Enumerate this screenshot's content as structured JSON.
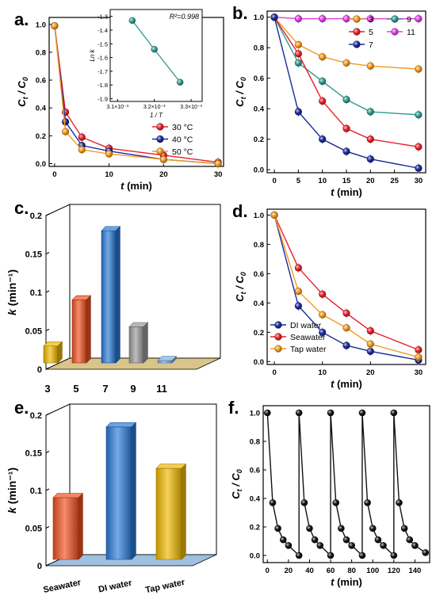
{
  "chart_data": [
    {
      "id": "a",
      "type": "line",
      "panel_label": "a.",
      "xlabel": "t (min)",
      "ylabel": "Ct / C0",
      "xlim": [
        -1,
        31
      ],
      "ylim": [
        -0.02,
        1.05
      ],
      "xticks": [
        "0",
        "10",
        "20",
        "30"
      ],
      "yticks": [
        "0.0",
        "0.2",
        "0.4",
        "0.6",
        "0.8",
        "1.0"
      ],
      "legend_position": "bottom-right",
      "series": [
        {
          "name": "30 °C",
          "color": "#e8202a",
          "x": [
            0,
            2,
            5,
            10,
            20,
            30
          ],
          "y": [
            0.99,
            0.37,
            0.19,
            0.11,
            0.06,
            0.01
          ]
        },
        {
          "name": "40 °C",
          "color": "#1a2a9a",
          "x": [
            0,
            2,
            5,
            10,
            20,
            30
          ],
          "y": [
            0.99,
            0.3,
            0.13,
            0.09,
            0.03,
            0.0
          ]
        },
        {
          "name": "50 °C",
          "color": "#f39a1e",
          "x": [
            0,
            2,
            5,
            10,
            20,
            30
          ],
          "y": [
            0.99,
            0.23,
            0.1,
            0.07,
            0.03,
            0.0
          ]
        }
      ],
      "inset": {
        "xlabel": "1 / T",
        "ylabel": "Ln k",
        "annotation": "R²=0.998",
        "xticks": [
          "3.1×10⁻³",
          "3.2×10⁻³",
          "3.3×10⁻³"
        ],
        "yticks": [
          "-1.3",
          "-1.4",
          "-1.5",
          "-1.6",
          "-1.7",
          "-1.8",
          "-1.9"
        ],
        "xlim": [
          0.00308,
          0.00333
        ],
        "ylim": [
          -1.92,
          -1.25
        ],
        "color": "#2e9a8c",
        "x": [
          0.00314,
          0.0032,
          0.00327
        ],
        "y": [
          -1.33,
          -1.54,
          -1.78
        ]
      }
    },
    {
      "id": "b",
      "type": "line",
      "panel_label": "b.",
      "xlabel": "t (min)",
      "ylabel": "Ct / C0",
      "xlim": [
        -1.5,
        31.5
      ],
      "ylim": [
        -0.02,
        1.04
      ],
      "xticks": [
        "0",
        "5",
        "10",
        "15",
        "20",
        "25",
        "30"
      ],
      "yticks": [
        "0.0",
        "0.2",
        "0.4",
        "0.6",
        "0.8",
        "1.0"
      ],
      "legend_position": "top-right",
      "series": [
        {
          "name": "3",
          "color": "#f39a1e",
          "x": [
            0,
            5,
            10,
            15,
            20,
            30
          ],
          "y": [
            1.0,
            0.82,
            0.74,
            0.7,
            0.68,
            0.66
          ]
        },
        {
          "name": "9",
          "color": "#2e9a8c",
          "x": [
            0,
            5,
            10,
            15,
            20,
            30
          ],
          "y": [
            1.0,
            0.7,
            0.58,
            0.46,
            0.38,
            0.36
          ]
        },
        {
          "name": "5",
          "color": "#e8202a",
          "x": [
            0,
            5,
            10,
            15,
            20,
            30
          ],
          "y": [
            1.0,
            0.76,
            0.45,
            0.27,
            0.2,
            0.15
          ]
        },
        {
          "name": "11",
          "color": "#e040e0",
          "x": [
            0,
            5,
            10,
            15,
            20,
            30
          ],
          "y": [
            1.0,
            0.99,
            0.99,
            0.99,
            0.99,
            0.99
          ]
        },
        {
          "name": "7",
          "color": "#1a2a9a",
          "x": [
            0,
            5,
            10,
            15,
            20,
            30
          ],
          "y": [
            1.0,
            0.38,
            0.2,
            0.12,
            0.07,
            0.01
          ]
        }
      ]
    },
    {
      "id": "c",
      "type": "bar",
      "panel_label": "c.",
      "ylabel": "k (min⁻¹)",
      "ylim": [
        0,
        0.2
      ],
      "yticks": [
        "0",
        "0.05",
        "0.1",
        "0.15",
        "0.2"
      ],
      "categories": [
        "3",
        "5",
        "7",
        "9",
        "11"
      ],
      "values": [
        0.022,
        0.082,
        0.172,
        0.047,
        0.003
      ],
      "colors": [
        "#f0b800",
        "#f05020",
        "#2a7ad8",
        "#9a9a9a",
        "#7ab0e8"
      ]
    },
    {
      "id": "d",
      "type": "line",
      "panel_label": "d.",
      "xlabel": "t (min)",
      "ylabel": "Ct / C0",
      "xlim": [
        -1.5,
        31.5
      ],
      "ylim": [
        -0.02,
        1.04
      ],
      "xticks": [
        "0",
        "10",
        "20",
        "30"
      ],
      "yticks": [
        "0.0",
        "0.2",
        "0.4",
        "0.6",
        "0.8",
        "1.0"
      ],
      "legend_position": "bottom-left",
      "series": [
        {
          "name": "DI water",
          "color": "#1a2a9a",
          "x": [
            0,
            5,
            10,
            15,
            20,
            30
          ],
          "y": [
            1.0,
            0.38,
            0.2,
            0.11,
            0.07,
            0.01
          ]
        },
        {
          "name": "Seawater",
          "color": "#e8202a",
          "x": [
            0,
            5,
            10,
            15,
            20,
            30
          ],
          "y": [
            1.0,
            0.64,
            0.46,
            0.33,
            0.21,
            0.08
          ]
        },
        {
          "name": "Tap water",
          "color": "#f39a1e",
          "x": [
            0,
            5,
            10,
            15,
            20,
            30
          ],
          "y": [
            1.0,
            0.48,
            0.32,
            0.23,
            0.12,
            0.03
          ]
        }
      ]
    },
    {
      "id": "e",
      "type": "bar",
      "panel_label": "e.",
      "ylabel": "k (min⁻¹)",
      "ylim": [
        0,
        0.2
      ],
      "yticks": [
        "0",
        "0.05",
        "0.1",
        "0.15",
        "0.2"
      ],
      "categories": [
        "Seawater",
        "DI water",
        "Tap water"
      ],
      "values": [
        0.082,
        0.176,
        0.121
      ],
      "colors": [
        "#f05020",
        "#2a7ad8",
        "#f0b800"
      ]
    },
    {
      "id": "f",
      "type": "line",
      "panel_label": "f.",
      "xlabel": "t (min)",
      "ylabel": "Ct / C0",
      "xlim": [
        -4,
        154
      ],
      "ylim": [
        -0.05,
        1.05
      ],
      "xticks": [
        "0",
        "20",
        "40",
        "60",
        "80",
        "100",
        "120",
        "140"
      ],
      "yticks": [
        "0.0",
        "0.2",
        "0.4",
        "0.6",
        "0.8",
        "1.0"
      ],
      "series": [
        {
          "name": "",
          "color": "#111111",
          "x": [
            0,
            5,
            10,
            15,
            20,
            30,
            30,
            35,
            40,
            45,
            50,
            60,
            60,
            65,
            70,
            75,
            80,
            90,
            90,
            95,
            100,
            105,
            110,
            120,
            120,
            125,
            130,
            135,
            140,
            150
          ],
          "y": [
            1.0,
            0.37,
            0.19,
            0.11,
            0.07,
            0.0,
            1.0,
            0.37,
            0.19,
            0.11,
            0.07,
            0.0,
            1.0,
            0.37,
            0.19,
            0.11,
            0.07,
            0.0,
            1.0,
            0.37,
            0.19,
            0.11,
            0.07,
            0.0,
            1.0,
            0.37,
            0.19,
            0.11,
            0.07,
            0.02
          ]
        }
      ]
    }
  ]
}
